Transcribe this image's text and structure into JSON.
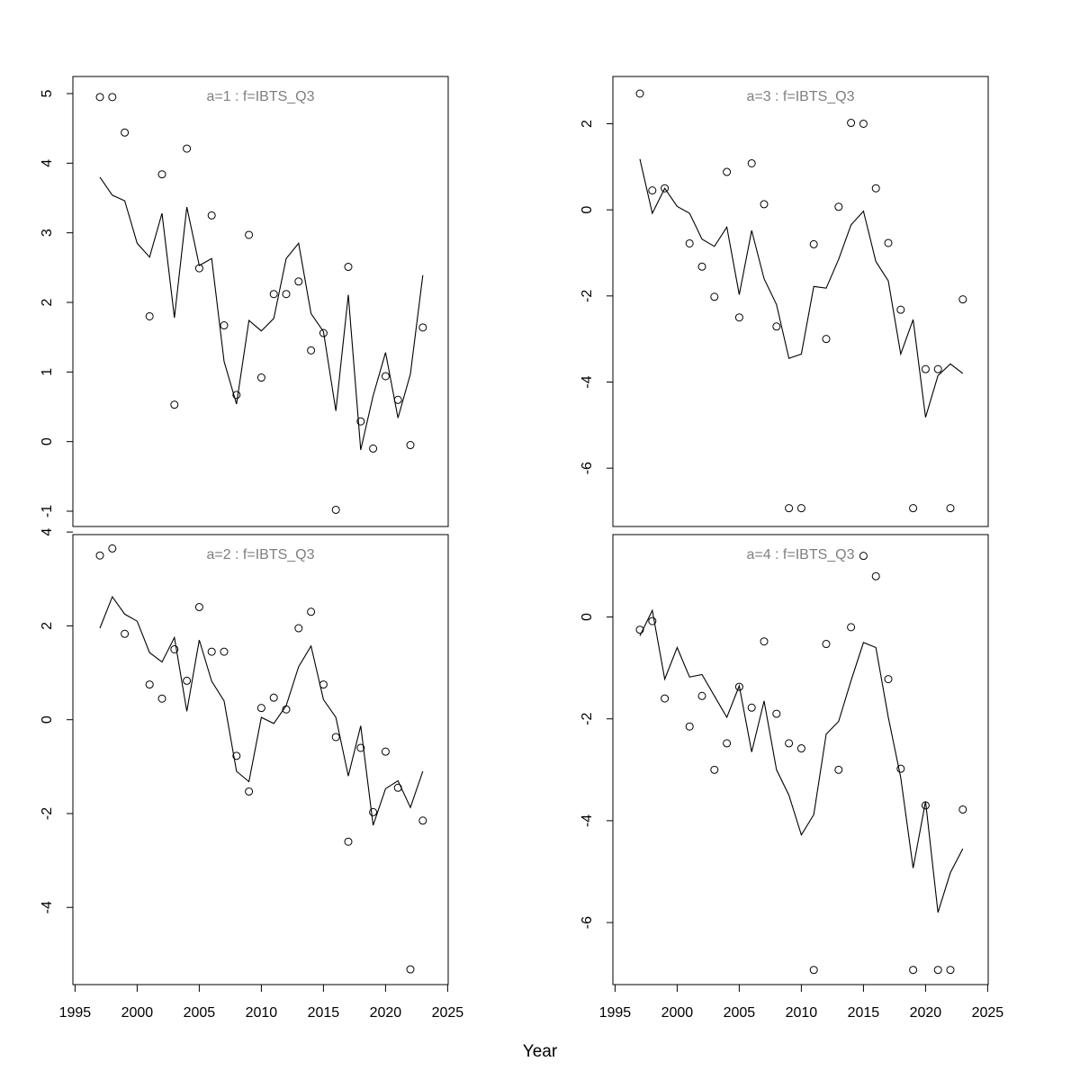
{
  "figure": {
    "xlabel": "Year"
  },
  "chart_data": [
    {
      "type": "scatter",
      "title": "a=1  :  f=IBTS_Q3",
      "xlim": [
        1997,
        2023
      ],
      "ylim": [
        -1,
        5
      ],
      "yticks": [
        -1,
        0,
        1,
        2,
        3,
        4,
        5
      ],
      "series": [
        {
          "kind": "points",
          "x": [
            1997,
            1998,
            1999,
            2001,
            2002,
            2003,
            2004,
            2005,
            2006,
            2007,
            2008,
            2009,
            2010,
            2011,
            2012,
            2013,
            2014,
            2015,
            2016,
            2017,
            2018,
            2019,
            2020,
            2021,
            2022,
            2023
          ],
          "y": [
            4.95,
            4.95,
            4.44,
            1.8,
            3.84,
            0.53,
            4.21,
            2.49,
            3.25,
            1.67,
            0.67,
            2.97,
            0.92,
            2.12,
            2.12,
            2.3,
            1.31,
            1.56,
            -0.98,
            2.51,
            0.29,
            -0.1,
            0.94,
            0.6,
            -0.05,
            1.64
          ]
        },
        {
          "kind": "line",
          "x": [
            1997,
            1998,
            1999,
            2000,
            2001,
            2002,
            2003,
            2004,
            2005,
            2006,
            2007,
            2008,
            2009,
            2010,
            2011,
            2012,
            2013,
            2014,
            2015,
            2016,
            2017,
            2018,
            2019,
            2020,
            2021,
            2022,
            2023
          ],
          "y": [
            3.8,
            3.54,
            3.46,
            2.85,
            2.65,
            3.28,
            1.78,
            3.37,
            2.53,
            2.63,
            1.15,
            0.54,
            1.74,
            1.59,
            1.77,
            2.63,
            2.85,
            1.84,
            1.58,
            0.44,
            2.11,
            -0.12,
            0.66,
            1.28,
            0.34,
            0.97,
            2.39
          ]
        }
      ]
    },
    {
      "type": "scatter",
      "title": "a=3  :  f=IBTS_Q3",
      "xlim": [
        1997,
        2023
      ],
      "ylim": [
        -7,
        2.7
      ],
      "yticks": [
        -6,
        -4,
        -2,
        0,
        2
      ],
      "series": [
        {
          "kind": "points",
          "x": [
            1997,
            1998,
            1999,
            2001,
            2002,
            2003,
            2004,
            2005,
            2006,
            2007,
            2008,
            2009,
            2010,
            2011,
            2012,
            2013,
            2014,
            2015,
            2016,
            2017,
            2018,
            2019,
            2020,
            2021,
            2022,
            2023
          ],
          "y": [
            2.7,
            0.45,
            0.5,
            -0.78,
            -1.32,
            -2.02,
            0.88,
            -2.5,
            1.08,
            0.13,
            -2.71,
            -6.93,
            -6.93,
            -0.8,
            -3.0,
            0.07,
            2.02,
            2.0,
            0.5,
            -0.77,
            -2.32,
            -6.93,
            -3.7,
            -3.7,
            -6.93,
            -2.08
          ]
        },
        {
          "kind": "line",
          "x": [
            1997,
            1998,
            1999,
            2000,
            2001,
            2002,
            2003,
            2004,
            2005,
            2006,
            2007,
            2008,
            2009,
            2010,
            2011,
            2012,
            2013,
            2014,
            2015,
            2016,
            2017,
            2018,
            2019,
            2020,
            2021,
            2022,
            2023
          ],
          "y": [
            1.18,
            -0.08,
            0.5,
            0.08,
            -0.08,
            -0.68,
            -0.85,
            -0.4,
            -1.97,
            -0.48,
            -1.6,
            -2.2,
            -3.45,
            -3.35,
            -1.78,
            -1.82,
            -1.15,
            -0.35,
            -0.03,
            -1.2,
            -1.65,
            -3.35,
            -2.55,
            -4.82,
            -3.85,
            -3.58,
            -3.8
          ]
        }
      ]
    },
    {
      "type": "scatter",
      "title": "a=2  :  f=IBTS_Q3",
      "xlim": [
        1997,
        2023
      ],
      "ylim": [
        -5.3,
        3.6
      ],
      "yticks": [
        -4,
        -2,
        0,
        2,
        4
      ],
      "series": [
        {
          "kind": "points",
          "x": [
            1997,
            1998,
            1999,
            2001,
            2002,
            2003,
            2004,
            2005,
            2006,
            2007,
            2008,
            2009,
            2010,
            2011,
            2012,
            2013,
            2014,
            2015,
            2016,
            2017,
            2018,
            2019,
            2020,
            2021,
            2022,
            2023
          ],
          "y": [
            3.5,
            3.65,
            1.83,
            0.75,
            0.45,
            1.5,
            0.83,
            2.4,
            1.45,
            1.45,
            -0.77,
            -1.53,
            0.25,
            0.47,
            0.22,
            1.95,
            2.3,
            0.75,
            -0.37,
            -2.6,
            -0.6,
            -1.97,
            -0.68,
            -1.45,
            -5.32,
            -2.15
          ]
        },
        {
          "kind": "line",
          "x": [
            1997,
            1998,
            1999,
            2000,
            2001,
            2002,
            2003,
            2004,
            2005,
            2006,
            2007,
            2008,
            2009,
            2010,
            2011,
            2012,
            2013,
            2014,
            2015,
            2016,
            2017,
            2018,
            2019,
            2020,
            2021,
            2022,
            2023
          ],
          "y": [
            1.95,
            2.62,
            2.25,
            2.1,
            1.43,
            1.23,
            1.75,
            0.18,
            1.7,
            0.82,
            0.4,
            -1.1,
            -1.32,
            0.05,
            -0.08,
            0.3,
            1.13,
            1.57,
            0.43,
            0.05,
            -1.2,
            -0.13,
            -2.25,
            -1.47,
            -1.3,
            -1.87,
            -1.1
          ]
        }
      ]
    },
    {
      "type": "scatter",
      "title": "a=4  :  f=IBTS_Q3",
      "xlim": [
        1997,
        2023
      ],
      "ylim": [
        -6.9,
        1.3
      ],
      "yticks": [
        -6,
        -4,
        -2,
        0
      ],
      "series": [
        {
          "kind": "points",
          "x": [
            1997,
            1998,
            1999,
            2001,
            2002,
            2003,
            2004,
            2005,
            2006,
            2007,
            2008,
            2009,
            2010,
            2011,
            2012,
            2013,
            2014,
            2015,
            2016,
            2017,
            2018,
            2019,
            2020,
            2021,
            2022,
            2023
          ],
          "y": [
            -0.25,
            -0.08,
            -1.6,
            -2.15,
            -1.55,
            -3.0,
            -2.48,
            -1.37,
            -1.78,
            -0.48,
            -1.9,
            -2.48,
            -2.58,
            -6.93,
            -0.53,
            -3.0,
            -0.2,
            1.2,
            0.8,
            -1.22,
            -2.98,
            -6.93,
            -3.7,
            -6.93,
            -6.93,
            -3.78
          ]
        },
        {
          "kind": "line",
          "x": [
            1997,
            1998,
            1999,
            2000,
            2001,
            2002,
            2003,
            2004,
            2005,
            2006,
            2007,
            2008,
            2009,
            2010,
            2011,
            2012,
            2013,
            2014,
            2015,
            2016,
            2017,
            2018,
            2019,
            2020,
            2021,
            2022,
            2023
          ],
          "y": [
            -0.37,
            0.13,
            -1.22,
            -0.6,
            -1.18,
            -1.13,
            -1.55,
            -1.97,
            -1.35,
            -2.65,
            -1.65,
            -3.0,
            -3.5,
            -4.28,
            -3.88,
            -2.3,
            -2.05,
            -1.25,
            -0.5,
            -0.6,
            -1.97,
            -3.15,
            -4.93,
            -3.62,
            -5.8,
            -5.02,
            -4.55
          ]
        }
      ]
    }
  ],
  "x_axis": {
    "ticks": [
      1995,
      2000,
      2005,
      2010,
      2015,
      2020,
      2025
    ]
  }
}
